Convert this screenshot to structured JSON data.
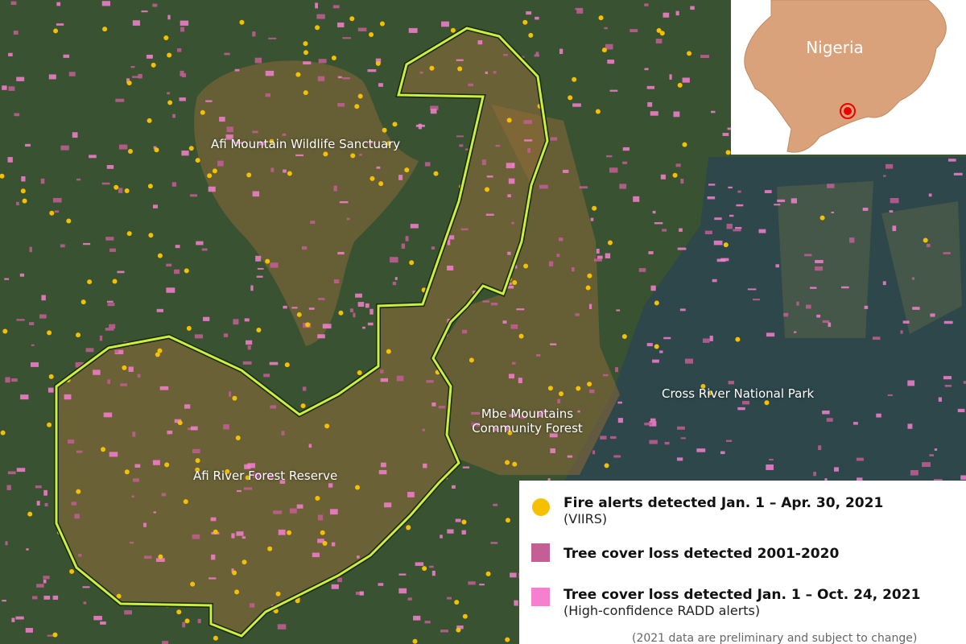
{
  "map": {
    "labels": [
      "Afi Mountain Wildlife Sanctuary",
      "Afi River Forest Reserve",
      "Mbe Mountains Community Forest",
      "Cross River National Park"
    ],
    "inset": {
      "label": "Nigeria"
    },
    "legend": {
      "items": [
        {
          "label": "Fire alerts detected Jan. 1 – Apr. 30, 2021",
          "note": "(VIIRS)"
        },
        {
          "label": "Tree cover loss detected 2001-2020"
        },
        {
          "label": "Tree cover loss detected Jan. 1 – Oct. 24, 2021",
          "note": "(High-confidence RADD alerts)"
        }
      ],
      "footnote": "(2021 data are preliminary and subject to change)"
    }
  }
}
